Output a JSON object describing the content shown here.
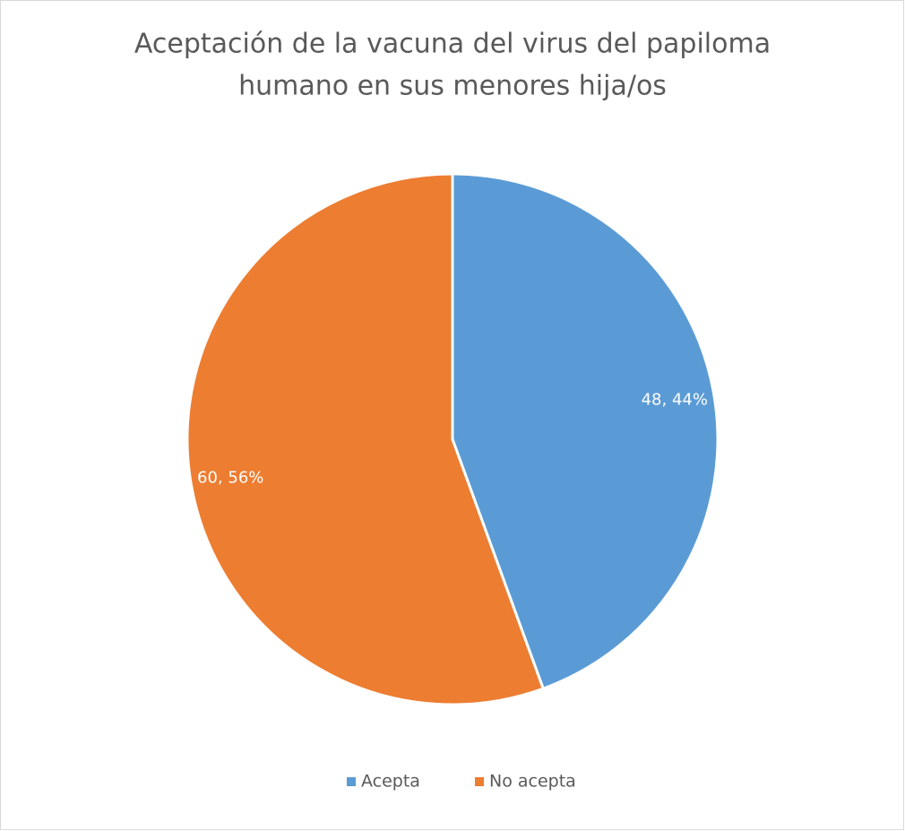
{
  "chart_data": {
    "type": "pie",
    "title": [
      "Aceptación de la vacuna del virus del papiloma",
      "humano en sus menores hija/os"
    ],
    "categories": [
      "Acepta",
      "No acepta"
    ],
    "values": [
      48,
      60
    ],
    "value_labels": [
      "48, 44%",
      "60, 56%"
    ],
    "colors": [
      "#5b9bd5",
      "#ed7d31"
    ],
    "legend": "bottom"
  }
}
